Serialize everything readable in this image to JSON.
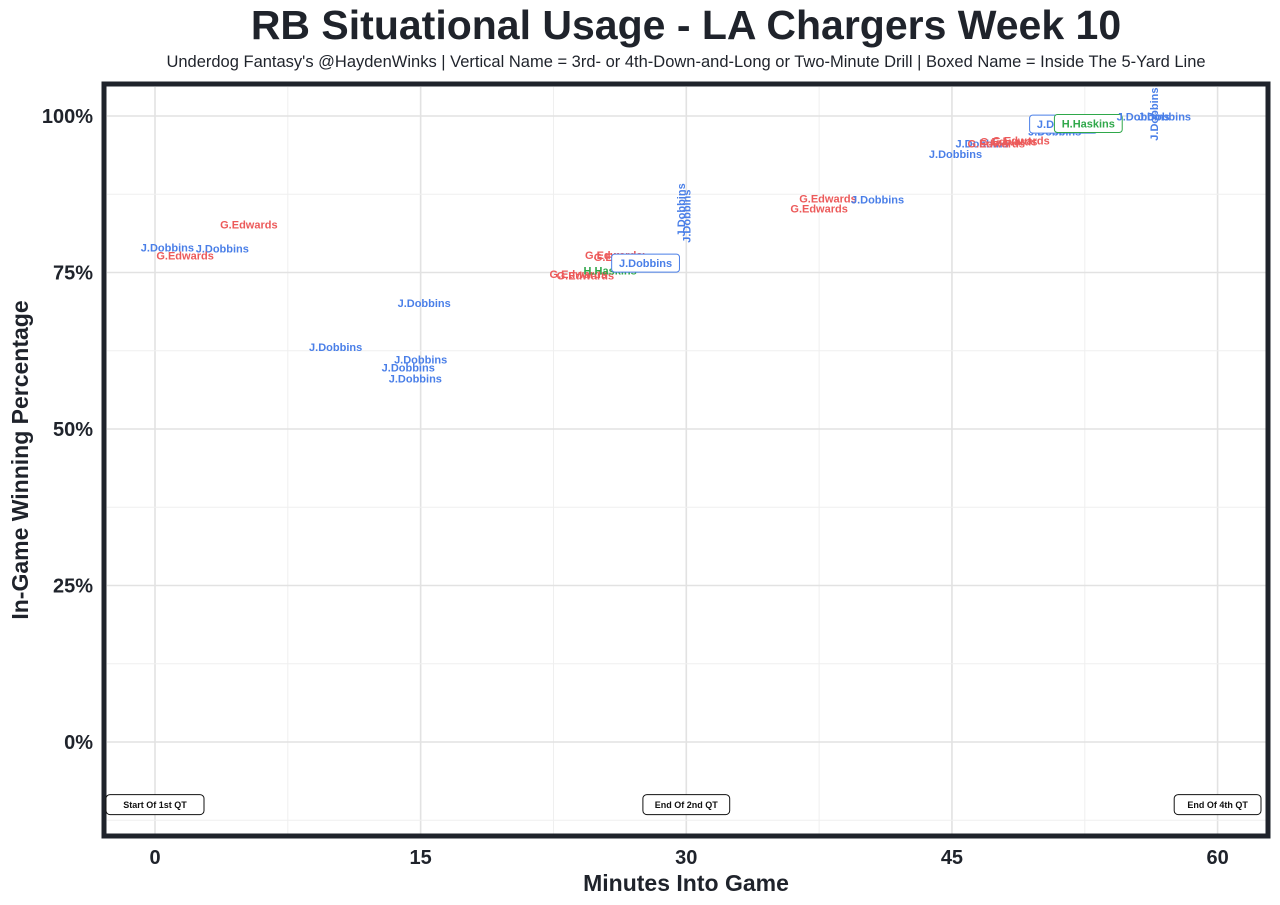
{
  "chart_data": {
    "type": "scatter",
    "title": "RB Situational Usage - LA Chargers Week 10",
    "subtitle": "Underdog Fantasy's @HaydenWinks | Vertical Name = 3rd- or 4th-Down-and-Long or Two-Minute Drill | Boxed Name = Inside The 5-Yard Line",
    "xlabel": "Minutes Into Game",
    "ylabel": "In-Game Winning Percentage",
    "xlim": [
      -3,
      62.5
    ],
    "ylim": [
      -15,
      105
    ],
    "x_ticks": [
      0,
      15,
      30,
      45,
      60
    ],
    "x_tick_labels": [
      "0",
      "15",
      "30",
      "45",
      "60"
    ],
    "y_ticks": [
      0,
      25,
      50,
      75,
      100
    ],
    "y_tick_labels": [
      "0%",
      "25%",
      "50%",
      "75%",
      "100%"
    ],
    "grid": true,
    "colors": {
      "J.Dobbins": "#4a7fe8",
      "G.Edwards": "#ec5a5a",
      "H.Haskins": "#2fa84a"
    },
    "markers": [
      {
        "label": "Start Of 1st QT",
        "x": 0,
        "y": -10
      },
      {
        "label": "End Of 2nd QT",
        "x": 30,
        "y": -10
      },
      {
        "label": "End Of 4th QT",
        "x": 60,
        "y": -10
      }
    ],
    "points": [
      {
        "player": "J.Dobbins",
        "x": 0.7,
        "y": 79
      },
      {
        "player": "J.Dobbins",
        "x": 3.8,
        "y": 78.8
      },
      {
        "player": "G.Edwards",
        "x": 1.7,
        "y": 77.7
      },
      {
        "player": "G.Edwards",
        "x": 5.3,
        "y": 82.7
      },
      {
        "player": "J.Dobbins",
        "x": 10.2,
        "y": 63.1
      },
      {
        "player": "J.Dobbins",
        "x": 15.2,
        "y": 70.1
      },
      {
        "player": "J.Dobbins",
        "x": 15.0,
        "y": 61.1
      },
      {
        "player": "J.Dobbins",
        "x": 14.3,
        "y": 59.8
      },
      {
        "player": "J.Dobbins",
        "x": 14.7,
        "y": 58.1
      },
      {
        "player": "G.Edwards",
        "x": 23.9,
        "y": 74.8
      },
      {
        "player": "G.Edwards",
        "x": 24.3,
        "y": 74.5
      },
      {
        "player": "H.Haskins",
        "x": 25.7,
        "y": 75.3
      },
      {
        "player": "G.Edwards",
        "x": 25.9,
        "y": 77.8
      },
      {
        "player": "G.Edwards",
        "x": 26.4,
        "y": 77.5
      },
      {
        "player": "J.Dobbins",
        "x": 27.7,
        "y": 76.5,
        "boxed": true
      },
      {
        "player": "J.Dobbins",
        "x": 29.7,
        "y": 85,
        "vertical": true
      },
      {
        "player": "J.Dobbins",
        "x": 30.0,
        "y": 84,
        "vertical": true
      },
      {
        "player": "G.Edwards",
        "x": 38.0,
        "y": 86.8
      },
      {
        "player": "J.Dobbins",
        "x": 40.8,
        "y": 86.7
      },
      {
        "player": "G.Edwards",
        "x": 37.5,
        "y": 85.2
      },
      {
        "player": "J.Dobbins",
        "x": 45.2,
        "y": 93.9
      },
      {
        "player": "J.Dobbins",
        "x": 46.7,
        "y": 95.6
      },
      {
        "player": "G.Edwards",
        "x": 47.5,
        "y": 95.6
      },
      {
        "player": "G.Edwards",
        "x": 48.2,
        "y": 95.9
      },
      {
        "player": "G.Edwards",
        "x": 48.9,
        "y": 96.1
      },
      {
        "player": "J.Dobbins",
        "x": 50.8,
        "y": 97.5
      },
      {
        "player": "J.Dobbins",
        "x": 51.3,
        "y": 98.7,
        "boxed": true
      },
      {
        "player": "H.Haskins",
        "x": 52.7,
        "y": 98.8,
        "boxed": true
      },
      {
        "player": "J.Dobbins",
        "x": 55.8,
        "y": 99.9
      },
      {
        "player": "J.Dobbins",
        "x": 57.0,
        "y": 99.9
      },
      {
        "player": "J.Dobbins",
        "x": 56.4,
        "y": 100.3,
        "vertical": true
      }
    ]
  }
}
